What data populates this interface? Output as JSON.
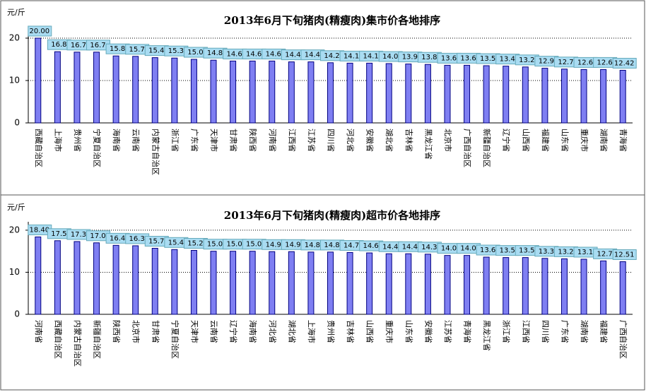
{
  "chart_data": [
    {
      "type": "bar",
      "title": "2013年6月下旬猪肉(精瘦肉)集市价各地排序",
      "y_label": "元/斤",
      "categories": [
        "西藏自治区",
        "上海市",
        "贵州省",
        "宁夏自治区",
        "海南省",
        "云南省",
        "内蒙古自治区",
        "浙江省",
        "广东省",
        "天津市",
        "甘肃省",
        "陕西省",
        "河南省",
        "江西省",
        "江苏省",
        "四川省",
        "河北省",
        "安徽省",
        "湖北省",
        "吉林省",
        "黑龙江省",
        "北京市",
        "广西自治区",
        "新疆自治区",
        "辽宁省",
        "山西省",
        "福建省",
        "山东省",
        "重庆市",
        "湖南省",
        "青海省"
      ],
      "values": [
        20.0,
        16.8,
        16.7,
        16.7,
        15.8,
        15.7,
        15.4,
        15.3,
        15.0,
        14.8,
        14.6,
        14.6,
        14.6,
        14.4,
        14.4,
        14.2,
        14.1,
        14.1,
        14.0,
        13.9,
        13.8,
        13.6,
        13.6,
        13.5,
        13.4,
        13.2,
        12.9,
        12.7,
        12.6,
        12.6,
        12.42
      ],
      "value_labels": [
        "20.00",
        "16.8",
        "16.7",
        "16.7",
        "15.8",
        "15.7",
        "15.4",
        "15.3",
        "15.0",
        "14.8",
        "14.6",
        "14.6",
        "14.6",
        "14.4",
        "14.4",
        "14.2",
        "14.1",
        "14.1",
        "14.0",
        "13.9",
        "13.8",
        "13.6",
        "13.6",
        "13.5",
        "13.4",
        "13.2",
        "12.9",
        "12.7",
        "12.6",
        "12.6",
        "12.42"
      ],
      "color": "#7f7ff2",
      "label_color": "#a9dcf2",
      "ylim": [
        0,
        22
      ],
      "yticks": [
        0,
        10,
        20
      ],
      "grid": true
    },
    {
      "type": "bar",
      "title": "2013年6月下旬猪肉(精瘦肉)超市价各地排序",
      "y_label": "元/斤",
      "categories": [
        "河南省",
        "西藏自治区",
        "内蒙古自治区",
        "新疆自治区",
        "陕西省",
        "北京市",
        "甘肃省",
        "宁夏自治区",
        "天津市",
        "云南省",
        "辽宁省",
        "海南省",
        "河北省",
        "湖北省",
        "上海市",
        "贵州省",
        "吉林省",
        "山西省",
        "重庆市",
        "山东省",
        "安徽省",
        "江苏省",
        "青海省",
        "黑龙江省",
        "浙江省",
        "江西省",
        "四川省",
        "广东省",
        "湖南省",
        "福建省",
        "广西自治区"
      ],
      "values": [
        18.4,
        17.5,
        17.3,
        17.0,
        16.4,
        16.3,
        15.7,
        15.4,
        15.2,
        15.0,
        15.0,
        15.0,
        14.9,
        14.9,
        14.8,
        14.8,
        14.7,
        14.6,
        14.4,
        14.4,
        14.3,
        14.0,
        14.0,
        13.6,
        13.5,
        13.5,
        13.3,
        13.2,
        13.1,
        12.7,
        12.51
      ],
      "value_labels": [
        "18.40",
        "17.5",
        "17.3",
        "17.0",
        "16.4",
        "16.3",
        "15.7",
        "15.4",
        "15.2",
        "15.0",
        "15.0",
        "15.0",
        "14.9",
        "14.9",
        "14.8",
        "14.8",
        "14.7",
        "14.6",
        "14.4",
        "14.4",
        "14.3",
        "14.0",
        "14.0",
        "13.6",
        "13.5",
        "13.5",
        "13.3",
        "13.2",
        "13.1",
        "12.7",
        "12.51"
      ],
      "color": "#7f7ff2",
      "label_color": "#a9dcf2",
      "ylim": [
        0,
        22
      ],
      "yticks": [
        0,
        10,
        20
      ],
      "grid": true
    }
  ]
}
